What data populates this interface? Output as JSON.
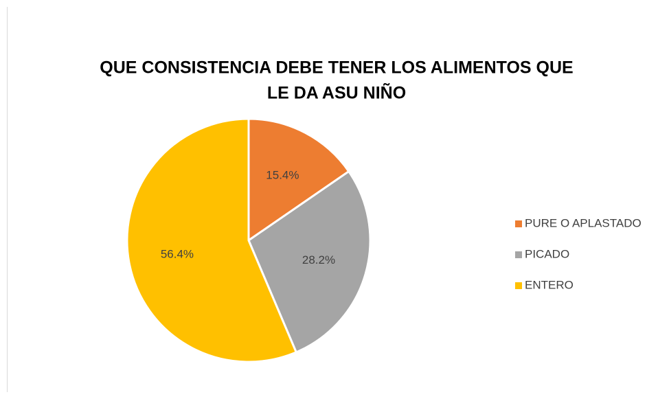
{
  "chart_data": {
    "type": "pie",
    "title": [
      "QUE CONSISTENCIA DEBE TENER LOS ALIMENTOS QUE",
      "LE DA ASU NIÑO"
    ],
    "categories": [
      "PURE O APLASTADO",
      "PICADO",
      "ENTERO"
    ],
    "values": [
      15.4,
      28.2,
      56.4
    ],
    "value_labels": [
      "15.4%",
      "28.2%",
      "56.4%"
    ],
    "colors": [
      "#ED7D31",
      "#A5A5A5",
      "#FFC000"
    ],
    "legend": "right"
  }
}
